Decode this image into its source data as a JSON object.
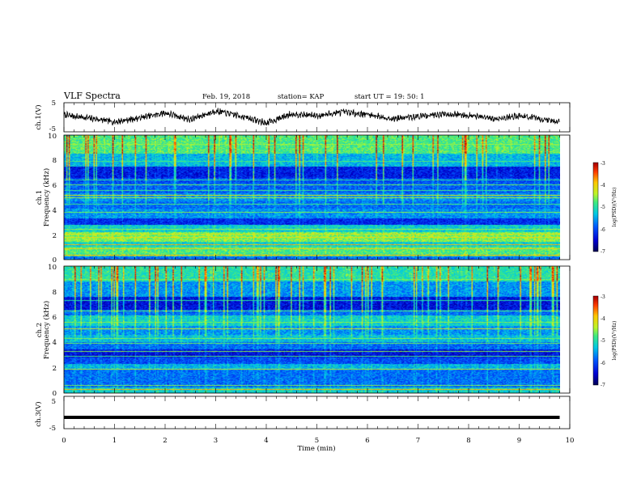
{
  "header": {
    "title": "VLF Spectra",
    "date": "Feb. 19, 2018",
    "station": "station= KAP",
    "start": "start  UT =   19: 50: 1"
  },
  "chart_data": [
    {
      "type": "line",
      "panel": "ch1-waveform",
      "ylabel": "ch.1(V)",
      "xlim": [
        0,
        10
      ],
      "ylim": [
        -5,
        5
      ],
      "yticks": [
        "5",
        "-5"
      ],
      "x": [
        0,
        0.5,
        1,
        1.5,
        2,
        2.5,
        3,
        3.5,
        4,
        4.5,
        5,
        5.5,
        6,
        6.5,
        7,
        7.5,
        8,
        8.5,
        9,
        9.5,
        9.8
      ],
      "y": [
        0.8,
        -0.3,
        -1.6,
        -0.2,
        1.5,
        -0.8,
        2.2,
        0.4,
        -2.0,
        1.2,
        0.5,
        1.8,
        1.0,
        -0.5,
        0.3,
        1.2,
        0.7,
        -0.6,
        0.5,
        -0.8,
        -1.5
      ],
      "color": "#000000"
    },
    {
      "type": "heatmap",
      "panel": "ch1-spectrogram",
      "ylabel": "ch.1\nFrequency (kHz)",
      "xlim": [
        0,
        10
      ],
      "ylim": [
        0,
        10
      ],
      "yticks": [
        "0",
        "2",
        "4",
        "6",
        "8",
        "10"
      ],
      "data_extent_x": [
        0,
        9.8
      ],
      "colorbar": {
        "label": "log(PSD)(V²/Hz)",
        "range": [
          -7,
          -3
        ],
        "ticks": [
          "-3",
          "-4",
          "-5",
          "-6",
          "-7"
        ]
      },
      "bands": [
        {
          "f": [
            0,
            0.25
          ],
          "level": 0.3
        },
        {
          "f": [
            0.25,
            1.0
          ],
          "level": 0.55
        },
        {
          "f": [
            1.0,
            1.4
          ],
          "level": 0.45
        },
        {
          "f": [
            1.4,
            2.2
          ],
          "level": 0.6
        },
        {
          "f": [
            2.2,
            2.8
          ],
          "level": 0.45
        },
        {
          "f": [
            2.8,
            3.3
          ],
          "level": 0.2
        },
        {
          "f": [
            3.3,
            4.1
          ],
          "level": 0.35
        },
        {
          "f": [
            4.1,
            4.7
          ],
          "level": 0.3
        },
        {
          "f": [
            4.7,
            5.3
          ],
          "level": 0.35
        },
        {
          "f": [
            5.3,
            6.2
          ],
          "level": 0.28
        },
        {
          "f": [
            6.2,
            6.6
          ],
          "level": 0.25
        },
        {
          "f": [
            6.6,
            7.5
          ],
          "level": 0.17
        },
        {
          "f": [
            7.5,
            8.5
          ],
          "level": 0.4
        },
        {
          "f": [
            8.5,
            10
          ],
          "level": 0.55
        }
      ],
      "lines": [
        {
          "f": 0.3,
          "level": 0.8
        },
        {
          "f": 0.85,
          "level": 0.75
        },
        {
          "f": 1.15,
          "level": 0.8
        },
        {
          "f": 1.75,
          "level": 0.72
        },
        {
          "f": 2.05,
          "level": 0.7
        },
        {
          "f": 2.4,
          "level": 0.62
        },
        {
          "f": 3.8,
          "level": 0.6
        },
        {
          "f": 4.45,
          "level": 0.55
        },
        {
          "f": 5.0,
          "level": 0.65
        },
        {
          "f": 5.15,
          "level": 0.72
        },
        {
          "f": 5.55,
          "level": 0.55
        },
        {
          "f": 6.0,
          "level": 0.58
        },
        {
          "f": 6.4,
          "level": 0.5
        },
        {
          "f": 7.9,
          "level": 0.55
        },
        {
          "f": 9.3,
          "level": 0.62
        }
      ]
    },
    {
      "type": "heatmap",
      "panel": "ch2-spectrogram",
      "ylabel": "ch.2\nFrequency (kHz)",
      "xlim": [
        0,
        10
      ],
      "ylim": [
        0,
        10
      ],
      "yticks": [
        "0",
        "2",
        "4",
        "6",
        "8",
        "10"
      ],
      "data_extent_x": [
        0,
        9.8
      ],
      "colorbar": {
        "label": "log(PSD)(V²/Hz)",
        "range": [
          -7,
          -3
        ],
        "ticks": [
          "-3",
          "-4",
          "-5",
          "-6",
          "-7"
        ]
      },
      "bands": [
        {
          "f": [
            0,
            0.4
          ],
          "level": 0.45
        },
        {
          "f": [
            0.4,
            1.8
          ],
          "level": 0.3
        },
        {
          "f": [
            1.8,
            2.3
          ],
          "level": 0.4
        },
        {
          "f": [
            2.3,
            2.8
          ],
          "level": 0.25
        },
        {
          "f": [
            2.8,
            3.4
          ],
          "level": 0.15
        },
        {
          "f": [
            3.4,
            4.0
          ],
          "level": 0.3
        },
        {
          "f": [
            4.0,
            4.6
          ],
          "level": 0.42
        },
        {
          "f": [
            4.6,
            5.3
          ],
          "level": 0.35
        },
        {
          "f": [
            5.3,
            6.1
          ],
          "level": 0.45
        },
        {
          "f": [
            6.1,
            6.6
          ],
          "level": 0.3
        },
        {
          "f": [
            6.6,
            7.6
          ],
          "level": 0.15
        },
        {
          "f": [
            7.6,
            8.8
          ],
          "level": 0.35
        },
        {
          "f": [
            8.8,
            10
          ],
          "level": 0.5
        }
      ],
      "lines": [
        {
          "f": 0.25,
          "level": 0.8
        },
        {
          "f": 0.6,
          "level": 0.6
        },
        {
          "f": 1.85,
          "level": 0.65
        },
        {
          "f": 2.9,
          "level": 0.55
        },
        {
          "f": 3.3,
          "level": 0.6
        },
        {
          "f": 3.9,
          "level": 0.58
        },
        {
          "f": 4.3,
          "level": 0.6
        },
        {
          "f": 5.05,
          "level": 0.7
        },
        {
          "f": 5.6,
          "level": 0.6
        },
        {
          "f": 6.45,
          "level": 0.55
        },
        {
          "f": 7.3,
          "level": 0.5
        },
        {
          "f": 9.0,
          "level": 0.6
        }
      ]
    },
    {
      "type": "line",
      "panel": "ch3-waveform",
      "ylabel": "ch.3(V)",
      "xlim": [
        0,
        10
      ],
      "ylim": [
        -5,
        5
      ],
      "yticks": [
        "5",
        "-5"
      ],
      "x": [
        0,
        9.8
      ],
      "y": [
        -1.5,
        -1.5
      ],
      "color": "#000000"
    }
  ],
  "xaxis": {
    "label": "Time (min)",
    "ticks": [
      "0",
      "1",
      "2",
      "3",
      "4",
      "5",
      "6",
      "7",
      "8",
      "9",
      "10"
    ]
  }
}
